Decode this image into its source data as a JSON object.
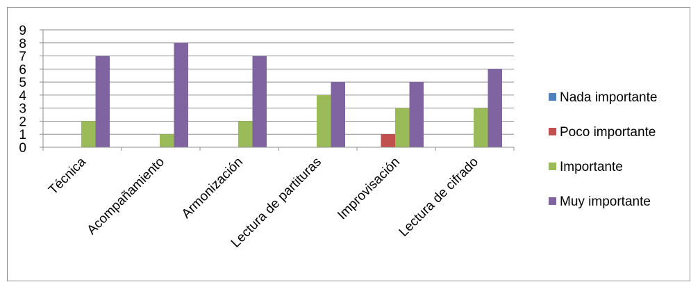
{
  "chart_data": {
    "type": "bar",
    "categories": [
      "Técnica",
      "Acompañamiento",
      "Armonización",
      "Lectura de partituras",
      "Improvisación",
      "Lectura de cifrado"
    ],
    "series": [
      {
        "name": "Nada importante",
        "color": "#4f81bd",
        "values": [
          0,
          0,
          0,
          0,
          0,
          0
        ]
      },
      {
        "name": "Poco importante",
        "color": "#c0504d",
        "values": [
          0,
          0,
          0,
          0,
          1,
          0
        ]
      },
      {
        "name": "Importante",
        "color": "#9bbb59",
        "values": [
          2,
          1,
          2,
          4,
          3,
          3
        ]
      },
      {
        "name": "Muy importante",
        "color": "#8064a2",
        "values": [
          7,
          8,
          7,
          5,
          5,
          6
        ]
      }
    ],
    "ylim": [
      0,
      9
    ],
    "yticks": [
      0,
      1,
      2,
      3,
      4,
      5,
      6,
      7,
      8,
      9
    ],
    "grid": true,
    "legend_position": "right",
    "title": "",
    "xlabel": "",
    "ylabel": ""
  }
}
